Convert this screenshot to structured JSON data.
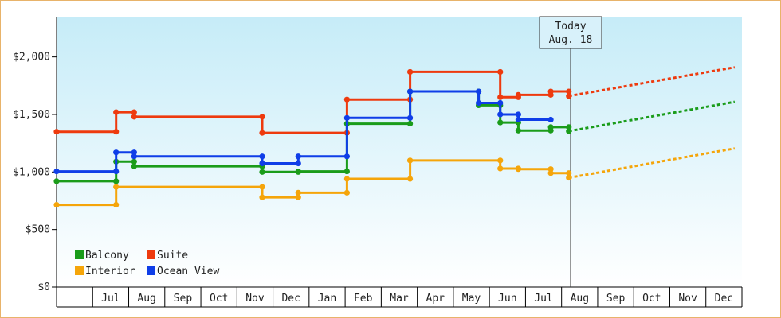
{
  "chart_data": {
    "type": "line",
    "step": true,
    "x_unit": "month",
    "x_range": [
      "2012-06",
      "2013-12"
    ],
    "month_ticks": [
      "Jul",
      "Aug",
      "Sep",
      "Oct",
      "Nov",
      "Dec",
      "Jan",
      "Feb",
      "Mar",
      "Apr",
      "May",
      "Jun",
      "Jul",
      "Aug",
      "Sep",
      "Oct",
      "Nov",
      "Dec"
    ],
    "y_range": [
      0,
      2350
    ],
    "y_ticks": [
      {
        "value": 0,
        "label": "$0"
      },
      {
        "value": 500,
        "label": "$500"
      },
      {
        "value": 1000,
        "label": "$1,000"
      },
      {
        "value": 1500,
        "label": "$1,500"
      },
      {
        "value": 2000,
        "label": "$2,000"
      }
    ],
    "today": {
      "label_line1": "Today",
      "label_line2": "Aug. 18",
      "t": 14.25
    },
    "legend": [
      {
        "key": "balcony",
        "label": "Balcony"
      },
      {
        "key": "suite",
        "label": "Suite"
      },
      {
        "key": "interior",
        "label": "Interior"
      },
      {
        "key": "ocean",
        "label": "Ocean View"
      }
    ],
    "colors": {
      "balcony": "#1a9c1a",
      "suite": "#ee3a0e",
      "interior": "#f5a50a",
      "ocean": "#0f3ee8",
      "plot_bg_top": "#c6ecf8",
      "plot_bg_bottom": "#ffffff",
      "frame_border": "#e8b36a"
    },
    "series": [
      {
        "key": "suite",
        "name": "Suite",
        "points": [
          [
            0,
            1350
          ],
          [
            1.65,
            1350
          ],
          [
            1.65,
            1520
          ],
          [
            2.15,
            1520
          ],
          [
            2.15,
            1480
          ],
          [
            5.7,
            1480
          ],
          [
            5.7,
            1340
          ],
          [
            8.05,
            1340
          ],
          [
            8.05,
            1630
          ],
          [
            9.8,
            1630
          ],
          [
            9.8,
            1870
          ],
          [
            12.3,
            1870
          ],
          [
            12.3,
            1650
          ],
          [
            12.8,
            1650
          ],
          [
            12.8,
            1670
          ],
          [
            13.7,
            1670
          ],
          [
            13.7,
            1700
          ],
          [
            14.2,
            1700
          ],
          [
            14.2,
            1660
          ]
        ],
        "forecast": [
          [
            14.2,
            1660
          ],
          [
            18.8,
            1910
          ]
        ]
      },
      {
        "key": "balcony",
        "name": "Balcony",
        "points": [
          [
            0,
            920
          ],
          [
            1.65,
            920
          ],
          [
            1.65,
            1090
          ],
          [
            2.15,
            1090
          ],
          [
            2.15,
            1050
          ],
          [
            5.7,
            1050
          ],
          [
            5.7,
            1000
          ],
          [
            6.7,
            1000
          ],
          [
            6.7,
            1005
          ],
          [
            8.05,
            1005
          ],
          [
            8.05,
            1420
          ],
          [
            9.8,
            1420
          ],
          [
            9.8,
            1700
          ],
          [
            11.7,
            1700
          ],
          [
            11.7,
            1580
          ],
          [
            12.3,
            1580
          ],
          [
            12.3,
            1430
          ],
          [
            12.8,
            1430
          ],
          [
            12.8,
            1360
          ],
          [
            13.7,
            1360
          ],
          [
            13.7,
            1390
          ],
          [
            14.2,
            1390
          ],
          [
            14.2,
            1355
          ]
        ],
        "forecast": [
          [
            14.2,
            1355
          ],
          [
            18.8,
            1610
          ]
        ]
      },
      {
        "key": "ocean",
        "name": "Ocean View",
        "points": [
          [
            0,
            1005
          ],
          [
            1.65,
            1005
          ],
          [
            1.65,
            1170
          ],
          [
            2.15,
            1170
          ],
          [
            2.15,
            1135
          ],
          [
            5.7,
            1135
          ],
          [
            5.7,
            1075
          ],
          [
            6.7,
            1075
          ],
          [
            6.7,
            1135
          ],
          [
            8.05,
            1135
          ],
          [
            8.05,
            1470
          ],
          [
            9.8,
            1470
          ],
          [
            9.8,
            1700
          ],
          [
            11.7,
            1700
          ],
          [
            11.7,
            1600
          ],
          [
            12.3,
            1600
          ],
          [
            12.3,
            1500
          ],
          [
            12.8,
            1500
          ],
          [
            12.8,
            1455
          ],
          [
            13.7,
            1455
          ]
        ],
        "forecast": []
      },
      {
        "key": "interior",
        "name": "Interior",
        "points": [
          [
            0,
            715
          ],
          [
            1.65,
            715
          ],
          [
            1.65,
            870
          ],
          [
            5.7,
            870
          ],
          [
            5.7,
            780
          ],
          [
            6.7,
            780
          ],
          [
            6.7,
            820
          ],
          [
            8.05,
            820
          ],
          [
            8.05,
            940
          ],
          [
            9.8,
            940
          ],
          [
            9.8,
            1100
          ],
          [
            12.3,
            1100
          ],
          [
            12.3,
            1030
          ],
          [
            12.8,
            1030
          ],
          [
            12.8,
            1025
          ],
          [
            13.7,
            1025
          ],
          [
            13.7,
            990
          ],
          [
            14.2,
            990
          ],
          [
            14.2,
            950
          ]
        ],
        "forecast": [
          [
            14.2,
            950
          ],
          [
            18.8,
            1205
          ]
        ]
      }
    ]
  }
}
